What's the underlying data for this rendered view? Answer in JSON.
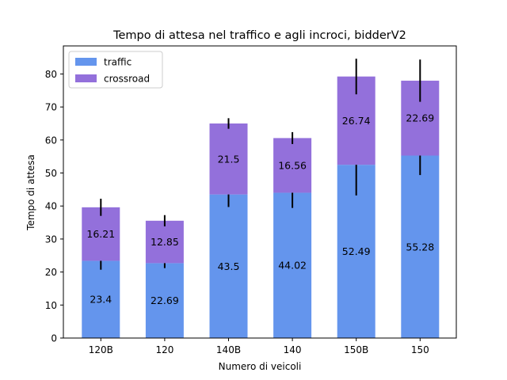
{
  "chart_data": {
    "type": "bar",
    "stacked": true,
    "title": "Tempo di attesa nel traffico e agli incroci, bidderV2",
    "xlabel": "Numero di veicoli",
    "ylabel": "Tempo di attesa",
    "categories": [
      "120B",
      "120",
      "140B",
      "140",
      "150B",
      "150"
    ],
    "ylim": [
      0,
      88.5
    ],
    "yticks": [
      0,
      10,
      20,
      30,
      40,
      50,
      60,
      70,
      80
    ],
    "yticks_labels": [
      "0",
      "10",
      "20",
      "30",
      "40",
      "50",
      "60",
      "70",
      "80"
    ],
    "legend_position": "upper-left",
    "grid": false,
    "series": [
      {
        "name": "traffic",
        "color": "#6495ED",
        "values": [
          23.4,
          22.69,
          43.5,
          44.02,
          52.49,
          55.28
        ],
        "value_labels": [
          "23.4",
          "22.69",
          "43.5",
          "44.02",
          "52.49",
          "55.28"
        ],
        "error": [
          2.7,
          1.5,
          3.8,
          4.6,
          9.3,
          5.9
        ]
      },
      {
        "name": "crossroad",
        "color": "#9370DB",
        "values": [
          16.21,
          12.85,
          21.5,
          16.56,
          26.74,
          22.69
        ],
        "value_labels": [
          "16.21",
          "12.85",
          "21.5",
          "16.56",
          "26.74",
          "22.69"
        ],
        "error": [
          2.6,
          1.7,
          1.6,
          1.8,
          5.4,
          6.4
        ]
      }
    ]
  }
}
